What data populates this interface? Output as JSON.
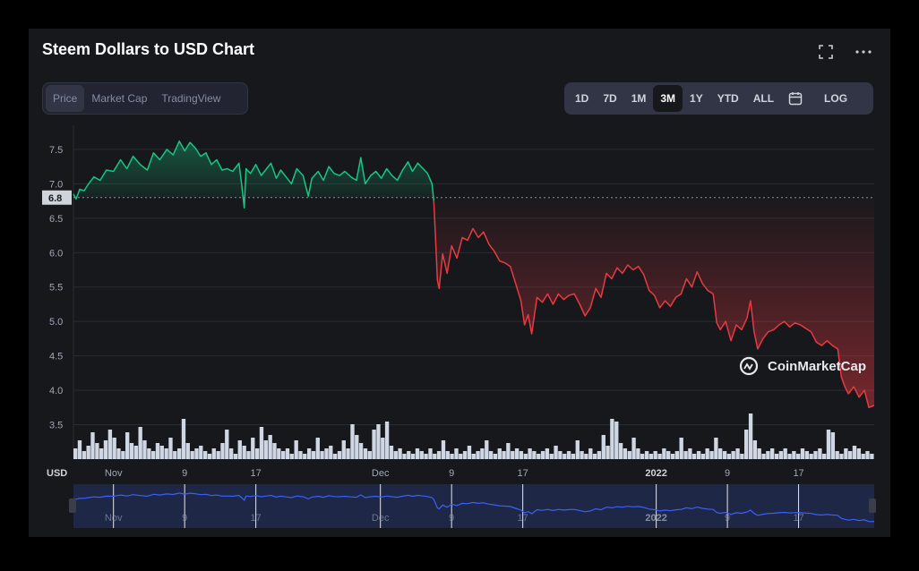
{
  "title": "Steem Dollars to USD Chart",
  "tabs": [
    {
      "label": "Price",
      "active": true
    },
    {
      "label": "Market Cap",
      "active": false
    },
    {
      "label": "TradingView",
      "active": false
    }
  ],
  "ranges": [
    {
      "label": "1D",
      "active": false
    },
    {
      "label": "7D",
      "active": false
    },
    {
      "label": "1M",
      "active": false
    },
    {
      "label": "3M",
      "active": true
    },
    {
      "label": "1Y",
      "active": false
    },
    {
      "label": "YTD",
      "active": false
    },
    {
      "label": "ALL",
      "active": false
    }
  ],
  "log_label": "LOG",
  "currency_label": "USD",
  "watermark": "CoinMarketCap",
  "colors": {
    "up": "#16c784",
    "down": "#ea3943",
    "volume": "#cfd6e4",
    "nav_line": "#3861fb"
  },
  "chart_data": {
    "type": "line",
    "title": "Steem Dollars to USD Chart",
    "ylabel": "USD",
    "ylim": [
      3.0,
      7.85
    ],
    "yticks": [
      3.5,
      4.0,
      4.5,
      5.0,
      5.5,
      6.0,
      6.5,
      7.0,
      7.5
    ],
    "reference_value": 6.8,
    "reference_label": "6.8",
    "xticks": [
      {
        "label": "Nov",
        "day": 0,
        "bold": false
      },
      {
        "label": "9",
        "day": 8,
        "bold": false
      },
      {
        "label": "17",
        "day": 16,
        "bold": false
      },
      {
        "label": "Dec",
        "day": 30,
        "bold": false
      },
      {
        "label": "9",
        "day": 38,
        "bold": false
      },
      {
        "label": "17",
        "day": 46,
        "bold": false
      },
      {
        "label": "2022",
        "day": 61,
        "bold": true
      },
      {
        "label": "9",
        "day": 69,
        "bold": false
      },
      {
        "label": "17",
        "day": 77,
        "bold": false
      }
    ],
    "xlim_days": [
      -4.5,
      85.5
    ],
    "series": [
      {
        "values": [
          [
            -4.5,
            6.85
          ],
          [
            -4.2,
            6.78
          ],
          [
            -3.8,
            6.92
          ],
          [
            -3.3,
            6.9
          ],
          [
            -2.8,
            7.0
          ],
          [
            -2.2,
            7.1
          ],
          [
            -1.5,
            7.05
          ],
          [
            -0.8,
            7.2
          ],
          [
            0,
            7.18
          ],
          [
            0.8,
            7.35
          ],
          [
            1.5,
            7.22
          ],
          [
            2.2,
            7.4
          ],
          [
            3,
            7.28
          ],
          [
            3.8,
            7.2
          ],
          [
            4.5,
            7.45
          ],
          [
            5.2,
            7.35
          ],
          [
            6,
            7.5
          ],
          [
            6.7,
            7.42
          ],
          [
            7.4,
            7.62
          ],
          [
            8,
            7.48
          ],
          [
            8.6,
            7.6
          ],
          [
            9.2,
            7.52
          ],
          [
            9.8,
            7.4
          ],
          [
            10.4,
            7.45
          ],
          [
            11,
            7.28
          ],
          [
            11.6,
            7.35
          ],
          [
            12.2,
            7.2
          ],
          [
            12.8,
            7.22
          ],
          [
            13.4,
            7.18
          ],
          [
            14.1,
            7.3
          ],
          [
            14.4,
            7.0
          ],
          [
            14.7,
            6.65
          ],
          [
            14.9,
            7.22
          ],
          [
            15.4,
            7.15
          ],
          [
            16,
            7.28
          ],
          [
            16.6,
            7.12
          ],
          [
            17.2,
            7.22
          ],
          [
            17.7,
            7.3
          ],
          [
            18.3,
            7.08
          ],
          [
            18.8,
            7.2
          ],
          [
            19.4,
            7.1
          ],
          [
            20,
            7.0
          ],
          [
            20.6,
            7.22
          ],
          [
            21.3,
            7.12
          ],
          [
            21.9,
            6.82
          ],
          [
            22.3,
            7.08
          ],
          [
            23,
            7.18
          ],
          [
            23.6,
            7.05
          ],
          [
            24.2,
            7.25
          ],
          [
            24.8,
            7.15
          ],
          [
            25.4,
            7.12
          ],
          [
            26,
            7.18
          ],
          [
            26.7,
            7.1
          ],
          [
            27.3,
            7.05
          ],
          [
            27.8,
            7.38
          ],
          [
            28.3,
            7.0
          ],
          [
            28.9,
            7.12
          ],
          [
            29.5,
            7.18
          ],
          [
            30.1,
            7.08
          ],
          [
            30.7,
            7.22
          ],
          [
            31.3,
            7.12
          ],
          [
            31.9,
            7.05
          ],
          [
            32.5,
            7.2
          ],
          [
            33.1,
            7.32
          ],
          [
            33.6,
            7.18
          ],
          [
            34.2,
            7.3
          ],
          [
            34.8,
            7.22
          ],
          [
            35.3,
            7.15
          ],
          [
            35.8,
            7.0
          ],
          [
            36.0,
            6.75
          ]
        ],
        "color": "#16c784"
      },
      {
        "values": [
          [
            36.0,
            6.75
          ],
          [
            36.2,
            6.2
          ],
          [
            36.4,
            5.6
          ],
          [
            36.6,
            5.48
          ],
          [
            37,
            5.98
          ],
          [
            37.5,
            5.7
          ],
          [
            38,
            6.1
          ],
          [
            38.6,
            5.92
          ],
          [
            39.2,
            6.22
          ],
          [
            39.8,
            6.18
          ],
          [
            40.4,
            6.35
          ],
          [
            41,
            6.22
          ],
          [
            41.6,
            6.3
          ],
          [
            42.2,
            6.12
          ],
          [
            42.8,
            6.02
          ],
          [
            43.4,
            5.88
          ],
          [
            44,
            5.85
          ],
          [
            44.6,
            5.8
          ],
          [
            45.2,
            5.55
          ],
          [
            45.8,
            5.3
          ],
          [
            46.2,
            4.95
          ],
          [
            46.6,
            5.1
          ],
          [
            47,
            4.82
          ],
          [
            47.6,
            5.35
          ],
          [
            48.2,
            5.28
          ],
          [
            48.8,
            5.4
          ],
          [
            49.4,
            5.25
          ],
          [
            50,
            5.4
          ],
          [
            50.6,
            5.32
          ],
          [
            51.2,
            5.38
          ],
          [
            51.8,
            5.4
          ],
          [
            52.4,
            5.25
          ],
          [
            53,
            5.08
          ],
          [
            53.6,
            5.2
          ],
          [
            54.2,
            5.48
          ],
          [
            54.8,
            5.35
          ],
          [
            55.4,
            5.7
          ],
          [
            56,
            5.62
          ],
          [
            56.6,
            5.78
          ],
          [
            57.2,
            5.7
          ],
          [
            57.8,
            5.82
          ],
          [
            58.4,
            5.75
          ],
          [
            59,
            5.8
          ],
          [
            59.6,
            5.68
          ],
          [
            60.2,
            5.45
          ],
          [
            60.8,
            5.38
          ],
          [
            61.4,
            5.2
          ],
          [
            62,
            5.3
          ],
          [
            62.6,
            5.22
          ],
          [
            63.2,
            5.35
          ],
          [
            63.8,
            5.4
          ],
          [
            64.4,
            5.62
          ],
          [
            65,
            5.5
          ],
          [
            65.6,
            5.72
          ],
          [
            66.2,
            5.55
          ],
          [
            66.8,
            5.45
          ],
          [
            67.4,
            5.4
          ],
          [
            67.8,
            4.98
          ],
          [
            68.2,
            4.88
          ],
          [
            68.8,
            5.0
          ],
          [
            69.4,
            4.72
          ],
          [
            70,
            4.95
          ],
          [
            70.6,
            4.88
          ],
          [
            71.2,
            5.05
          ],
          [
            71.6,
            5.3
          ],
          [
            72,
            4.85
          ],
          [
            72.4,
            4.6
          ],
          [
            73,
            4.75
          ],
          [
            73.6,
            4.85
          ],
          [
            74.2,
            4.88
          ],
          [
            74.8,
            4.95
          ],
          [
            75.4,
            5.0
          ],
          [
            76,
            4.92
          ],
          [
            76.6,
            4.98
          ],
          [
            77.2,
            4.95
          ],
          [
            77.8,
            4.9
          ],
          [
            78.4,
            4.85
          ],
          [
            79,
            4.7
          ],
          [
            79.6,
            4.65
          ],
          [
            80.2,
            4.72
          ],
          [
            80.8,
            4.65
          ],
          [
            81.4,
            4.6
          ],
          [
            81.8,
            4.2
          ],
          [
            82.2,
            4.05
          ],
          [
            82.6,
            3.95
          ],
          [
            83.2,
            4.05
          ],
          [
            83.8,
            3.9
          ],
          [
            84.4,
            4.0
          ],
          [
            84.9,
            3.75
          ],
          [
            85.5,
            3.78
          ]
        ],
        "color": "#ea3943"
      }
    ],
    "volume": [
      0.2,
      0.35,
      0.15,
      0.25,
      0.5,
      0.3,
      0.2,
      0.35,
      0.55,
      0.4,
      0.2,
      0.15,
      0.5,
      0.3,
      0.25,
      0.6,
      0.35,
      0.2,
      0.15,
      0.3,
      0.25,
      0.2,
      0.4,
      0.15,
      0.2,
      0.75,
      0.3,
      0.15,
      0.2,
      0.25,
      0.15,
      0.1,
      0.2,
      0.15,
      0.3,
      0.55,
      0.2,
      0.1,
      0.35,
      0.25,
      0.15,
      0.4,
      0.2,
      0.6,
      0.35,
      0.45,
      0.3,
      0.2,
      0.15,
      0.2,
      0.1,
      0.35,
      0.15,
      0.1,
      0.2,
      0.15,
      0.4,
      0.15,
      0.2,
      0.25,
      0.1,
      0.15,
      0.35,
      0.2,
      0.65,
      0.45,
      0.3,
      0.2,
      0.15,
      0.55,
      0.65,
      0.4,
      0.7,
      0.25,
      0.15,
      0.2,
      0.1,
      0.15,
      0.1,
      0.2,
      0.15,
      0.1,
      0.2,
      0.1,
      0.15,
      0.35,
      0.15,
      0.1,
      0.2,
      0.1,
      0.15,
      0.25,
      0.1,
      0.15,
      0.2,
      0.35,
      0.15,
      0.1,
      0.2,
      0.15,
      0.3,
      0.15,
      0.2,
      0.15,
      0.1,
      0.2,
      0.15,
      0.1,
      0.15,
      0.2,
      0.1,
      0.25,
      0.15,
      0.1,
      0.15,
      0.1,
      0.35,
      0.15,
      0.1,
      0.2,
      0.1,
      0.15,
      0.45,
      0.25,
      0.75,
      0.7,
      0.3,
      0.2,
      0.15,
      0.4,
      0.2,
      0.1,
      0.15,
      0.1,
      0.15,
      0.1,
      0.2,
      0.15,
      0.1,
      0.15,
      0.4,
      0.15,
      0.2,
      0.1,
      0.15,
      0.1,
      0.2,
      0.15,
      0.4,
      0.2,
      0.15,
      0.1,
      0.15,
      0.2,
      0.1,
      0.55,
      0.85,
      0.35,
      0.2,
      0.1,
      0.15,
      0.2,
      0.1,
      0.15,
      0.2,
      0.1,
      0.15,
      0.1,
      0.2,
      0.15,
      0.1,
      0.15,
      0.2,
      0.1,
      0.55,
      0.5,
      0.15,
      0.1,
      0.2,
      0.15,
      0.25,
      0.2,
      0.1,
      0.15,
      0.1
    ]
  }
}
